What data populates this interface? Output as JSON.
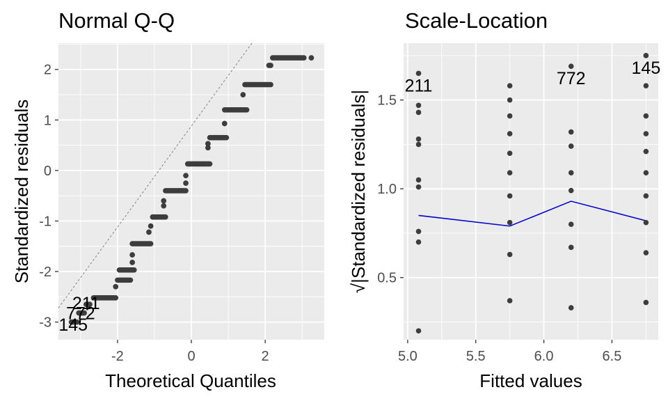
{
  "chart_data": [
    {
      "type": "scatter",
      "title": "Normal Q-Q",
      "xlabel": "Theoretical Quantiles",
      "ylabel": "Standardized residuals",
      "xlim": [
        -3.6,
        3.6
      ],
      "ylim": [
        -3.35,
        2.52
      ],
      "xticks": [
        -2,
        0,
        2
      ],
      "xtick_labels": [
        "-2",
        "0",
        "2"
      ],
      "yticks": [
        -3,
        -2,
        -1,
        0,
        1,
        2
      ],
      "ytick_labels": [
        "-3",
        "-2",
        "-1",
        "0",
        "1",
        "2"
      ],
      "grid": true,
      "reference_line": {
        "slope": 1.0,
        "intercept": 0.88
      },
      "point_color": "#3d3d3d",
      "line_color": "#7f7f7f",
      "steps": [
        {
          "x_start": -3.25,
          "x_end": -3.1,
          "y": -3.0
        },
        {
          "x_start": -3.05,
          "x_end": -2.9,
          "y": -2.82
        },
        {
          "x_start": -2.85,
          "x_end": -2.75,
          "y": -2.65
        },
        {
          "x_start": -2.65,
          "x_end": -2.05,
          "y": -2.52
        },
        {
          "x_start": -2.05,
          "x_end": -2.05,
          "y": -2.3
        },
        {
          "x_start": -2.0,
          "x_end": -1.65,
          "y": -2.17
        },
        {
          "x_start": -1.95,
          "x_end": -1.55,
          "y": -1.97
        },
        {
          "x_start": -1.6,
          "x_end": -1.6,
          "y": -1.82
        },
        {
          "x_start": -1.6,
          "x_end": -1.6,
          "y": -1.67
        },
        {
          "x_start": -1.6,
          "x_end": -1.1,
          "y": -1.45
        },
        {
          "x_start": -1.15,
          "x_end": -1.15,
          "y": -1.22
        },
        {
          "x_start": -1.1,
          "x_end": -1.1,
          "y": -1.1
        },
        {
          "x_start": -1.05,
          "x_end": -0.7,
          "y": -0.92
        },
        {
          "x_start": -0.75,
          "x_end": -0.75,
          "y": -0.7
        },
        {
          "x_start": -0.75,
          "x_end": -0.75,
          "y": -0.6
        },
        {
          "x_start": -0.7,
          "x_end": -0.15,
          "y": -0.4
        },
        {
          "x_start": -0.15,
          "x_end": -0.15,
          "y": -0.25
        },
        {
          "x_start": -0.15,
          "x_end": -0.15,
          "y": -0.1
        },
        {
          "x_start": -0.1,
          "x_end": 0.5,
          "y": 0.13
        },
        {
          "x_start": 0.45,
          "x_end": 0.45,
          "y": 0.45
        },
        {
          "x_start": 0.45,
          "x_end": 0.45,
          "y": 0.53
        },
        {
          "x_start": 0.5,
          "x_end": 0.95,
          "y": 0.65
        },
        {
          "x_start": 0.9,
          "x_end": 0.9,
          "y": 0.93
        },
        {
          "x_start": 0.9,
          "x_end": 1.5,
          "y": 1.2
        },
        {
          "x_start": 1.4,
          "x_end": 1.4,
          "y": 1.5
        },
        {
          "x_start": 1.45,
          "x_end": 2.15,
          "y": 1.7
        },
        {
          "x_start": 2.1,
          "x_end": 2.15,
          "y": 2.08
        },
        {
          "x_start": 2.2,
          "x_end": 3.05,
          "y": 2.23
        },
        {
          "x_start": 3.25,
          "x_end": 3.25,
          "y": 2.23
        }
      ],
      "annotations": [
        {
          "label": "211",
          "x": -2.85,
          "y": -2.62
        },
        {
          "label": "772",
          "x": -3.0,
          "y": -2.82
        },
        {
          "label": "145",
          "x": -3.2,
          "y": -3.05
        }
      ]
    },
    {
      "type": "scatter",
      "title": "Scale-Location",
      "xlabel": "Fitted values",
      "ylabel": "√|Standardized residuals|",
      "xlim": [
        4.97,
        6.84
      ],
      "ylim": [
        0.15,
        1.82
      ],
      "xticks": [
        5.0,
        5.5,
        6.0,
        6.5
      ],
      "xtick_labels": [
        "5.0",
        "5.5",
        "6.0",
        "6.5"
      ],
      "yticks": [
        0.5,
        1.0,
        1.5
      ],
      "ytick_labels": [
        "0.5",
        "1.0",
        "1.5"
      ],
      "grid": true,
      "point_color": "#3d3d3d",
      "line_color": "#0000cc",
      "points": [
        {
          "x": 5.08,
          "y": 0.2
        },
        {
          "x": 5.08,
          "y": 0.7
        },
        {
          "x": 5.08,
          "y": 0.76
        },
        {
          "x": 5.08,
          "y": 1.01
        },
        {
          "x": 5.08,
          "y": 1.05
        },
        {
          "x": 5.08,
          "y": 1.25
        },
        {
          "x": 5.08,
          "y": 1.28
        },
        {
          "x": 5.08,
          "y": 1.43
        },
        {
          "x": 5.08,
          "y": 1.47
        },
        {
          "x": 5.08,
          "y": 1.65
        },
        {
          "x": 5.75,
          "y": 0.37
        },
        {
          "x": 5.75,
          "y": 0.63
        },
        {
          "x": 5.75,
          "y": 0.81
        },
        {
          "x": 5.75,
          "y": 0.96
        },
        {
          "x": 5.75,
          "y": 1.09
        },
        {
          "x": 5.75,
          "y": 1.2
        },
        {
          "x": 5.75,
          "y": 1.31
        },
        {
          "x": 5.75,
          "y": 1.41
        },
        {
          "x": 5.75,
          "y": 1.5
        },
        {
          "x": 5.75,
          "y": 1.58
        },
        {
          "x": 6.2,
          "y": 0.33
        },
        {
          "x": 6.2,
          "y": 0.67
        },
        {
          "x": 6.2,
          "y": 0.8
        },
        {
          "x": 6.2,
          "y": 0.99
        },
        {
          "x": 6.2,
          "y": 1.09
        },
        {
          "x": 6.2,
          "y": 1.24
        },
        {
          "x": 6.2,
          "y": 1.32
        },
        {
          "x": 6.2,
          "y": 1.69
        },
        {
          "x": 6.75,
          "y": 0.36
        },
        {
          "x": 6.75,
          "y": 0.64
        },
        {
          "x": 6.75,
          "y": 0.81
        },
        {
          "x": 6.75,
          "y": 0.96
        },
        {
          "x": 6.75,
          "y": 1.09
        },
        {
          "x": 6.75,
          "y": 1.21
        },
        {
          "x": 6.75,
          "y": 1.31
        },
        {
          "x": 6.75,
          "y": 1.41
        },
        {
          "x": 6.75,
          "y": 1.58
        },
        {
          "x": 6.75,
          "y": 1.75
        }
      ],
      "smooth_line": [
        {
          "x": 5.08,
          "y": 0.85
        },
        {
          "x": 5.75,
          "y": 0.79
        },
        {
          "x": 6.2,
          "y": 0.93
        },
        {
          "x": 6.75,
          "y": 0.82
        }
      ],
      "annotations": [
        {
          "label": "211",
          "x": 5.08,
          "y": 1.65
        },
        {
          "label": "772",
          "x": 6.2,
          "y": 1.69
        },
        {
          "label": "145",
          "x": 6.75,
          "y": 1.75
        }
      ]
    }
  ]
}
